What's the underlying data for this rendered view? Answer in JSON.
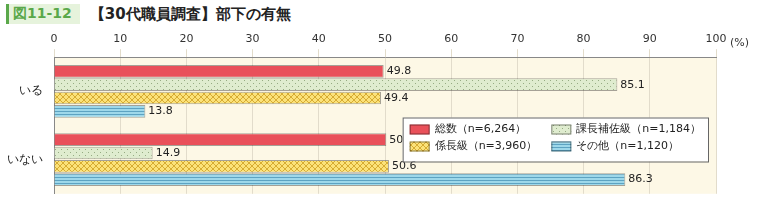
{
  "chart_data": {
    "type": "bar",
    "orientation": "horizontal",
    "figure_number": "図11-12",
    "title": "【30代職員調査】部下の有無",
    "x_label": "(%)",
    "categories": [
      "いる",
      "いない"
    ],
    "series": [
      {
        "name": "総数（n=6,264）",
        "color": "#e9505a",
        "values": [
          49.8,
          50.2
        ]
      },
      {
        "name": "課長補佐級（n=1,184）",
        "color": "#dfeccf",
        "values": [
          85.1,
          14.9
        ]
      },
      {
        "name": "係長級（n=3,960）",
        "color": "#fbe27a",
        "values": [
          49.4,
          50.6
        ]
      },
      {
        "name": "その他（n=1,120）",
        "color": "#9ed8ea",
        "values": [
          13.8,
          86.3
        ]
      }
    ],
    "xlim": [
      0,
      100
    ],
    "xticks": [
      0,
      10,
      20,
      30,
      40,
      50,
      60,
      70,
      80,
      90,
      100
    ],
    "grid": true,
    "legend": "right",
    "data_labels": true
  }
}
